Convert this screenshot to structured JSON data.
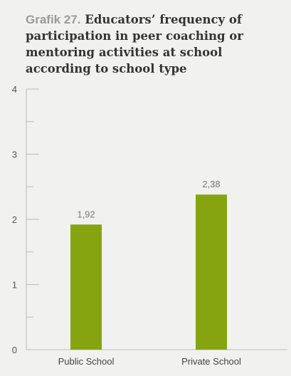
{
  "header": {
    "prefix": "Grafik 27.",
    "title": "Educators’ frequency of participation in peer coaching or mentoring activities at school according to school type"
  },
  "chart_data": {
    "type": "bar",
    "categories": [
      "Public School",
      "Private School"
    ],
    "values": [
      1.92,
      2.38
    ],
    "value_labels": [
      "1,92",
      "2,38"
    ],
    "ylim": [
      0,
      4
    ],
    "yticks": [
      "0",
      "1",
      "2",
      "3",
      "4"
    ],
    "grid": false,
    "legend": "none",
    "colors": {
      "bar": "#86a40f",
      "axis": "#bdbdbd",
      "tick_label": "#555555",
      "value_label": "#7a7a7a",
      "background": "#f1f1ef"
    }
  }
}
